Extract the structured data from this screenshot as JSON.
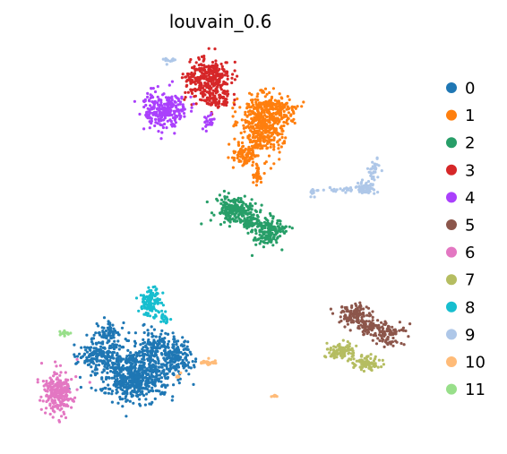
{
  "chart_data": {
    "type": "scatter",
    "title": "louvain_0.6",
    "xlabel": "",
    "ylabel": "",
    "grid": false,
    "axes_visible": false,
    "legend_placement": "right",
    "legend_title": "",
    "series": [
      {
        "name": "0",
        "color": "#1f77b4"
      },
      {
        "name": "1",
        "color": "#ff7f0e"
      },
      {
        "name": "2",
        "color": "#279e68"
      },
      {
        "name": "3",
        "color": "#d62728"
      },
      {
        "name": "4",
        "color": "#aa40fc"
      },
      {
        "name": "5",
        "color": "#8c564b"
      },
      {
        "name": "6",
        "color": "#e377c2"
      },
      {
        "name": "7",
        "color": "#b5bd61"
      },
      {
        "name": "8",
        "color": "#17becf"
      },
      {
        "name": "9",
        "color": "#aec7e8"
      },
      {
        "name": "10",
        "color": "#ffbb78"
      },
      {
        "name": "11",
        "color": "#98df8a"
      }
    ]
  }
}
